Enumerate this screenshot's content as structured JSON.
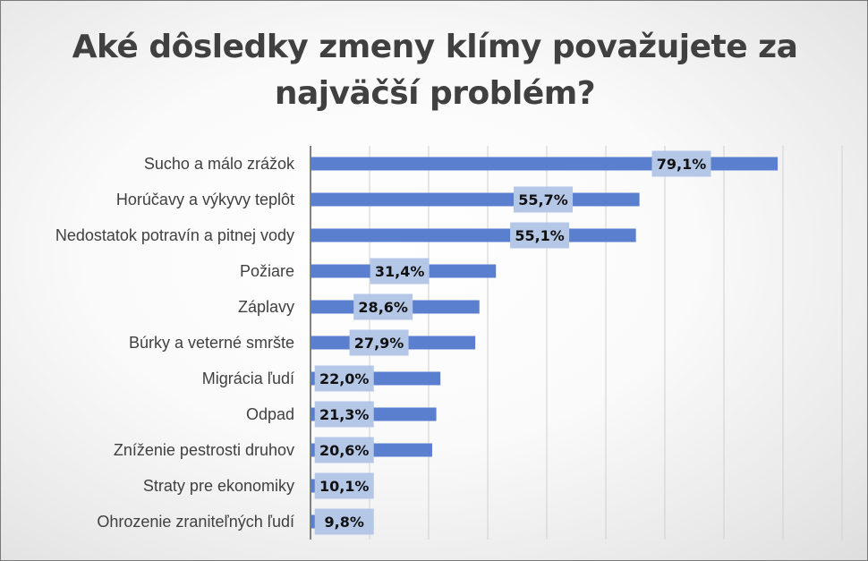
{
  "chart_data": {
    "type": "bar",
    "orientation": "horizontal",
    "title": "Aké dôsledky zmeny klímy považujete za najväčší problém?",
    "categories": [
      "Sucho a málo zrážok",
      "Horúčavy a výkyvy teplôt",
      "Nedostatok potravín a pitnej vody",
      "Požiare",
      "Záplavy",
      "Búrky a veterné smršte",
      "Migrácia ľudí",
      "Odpad",
      "Zníženie pestrosti druhov",
      "Straty pre ekonomiky",
      "Ohrozenie zraniteľných ľudí"
    ],
    "values": [
      79.1,
      55.7,
      55.1,
      31.4,
      28.6,
      27.9,
      22.0,
      21.3,
      20.6,
      10.1,
      9.8
    ],
    "value_labels": [
      "79,1%",
      "55,7%",
      "55,1%",
      "31,4%",
      "28,6%",
      "27,9%",
      "22,0%",
      "21,3%",
      "20,6%",
      "10,1%",
      "9,8%"
    ],
    "xlim": [
      0,
      90
    ],
    "xgrid_step": 10,
    "grid": true,
    "bar_color": "#5b7fcf",
    "label_box_color": "#b4c7e7"
  }
}
